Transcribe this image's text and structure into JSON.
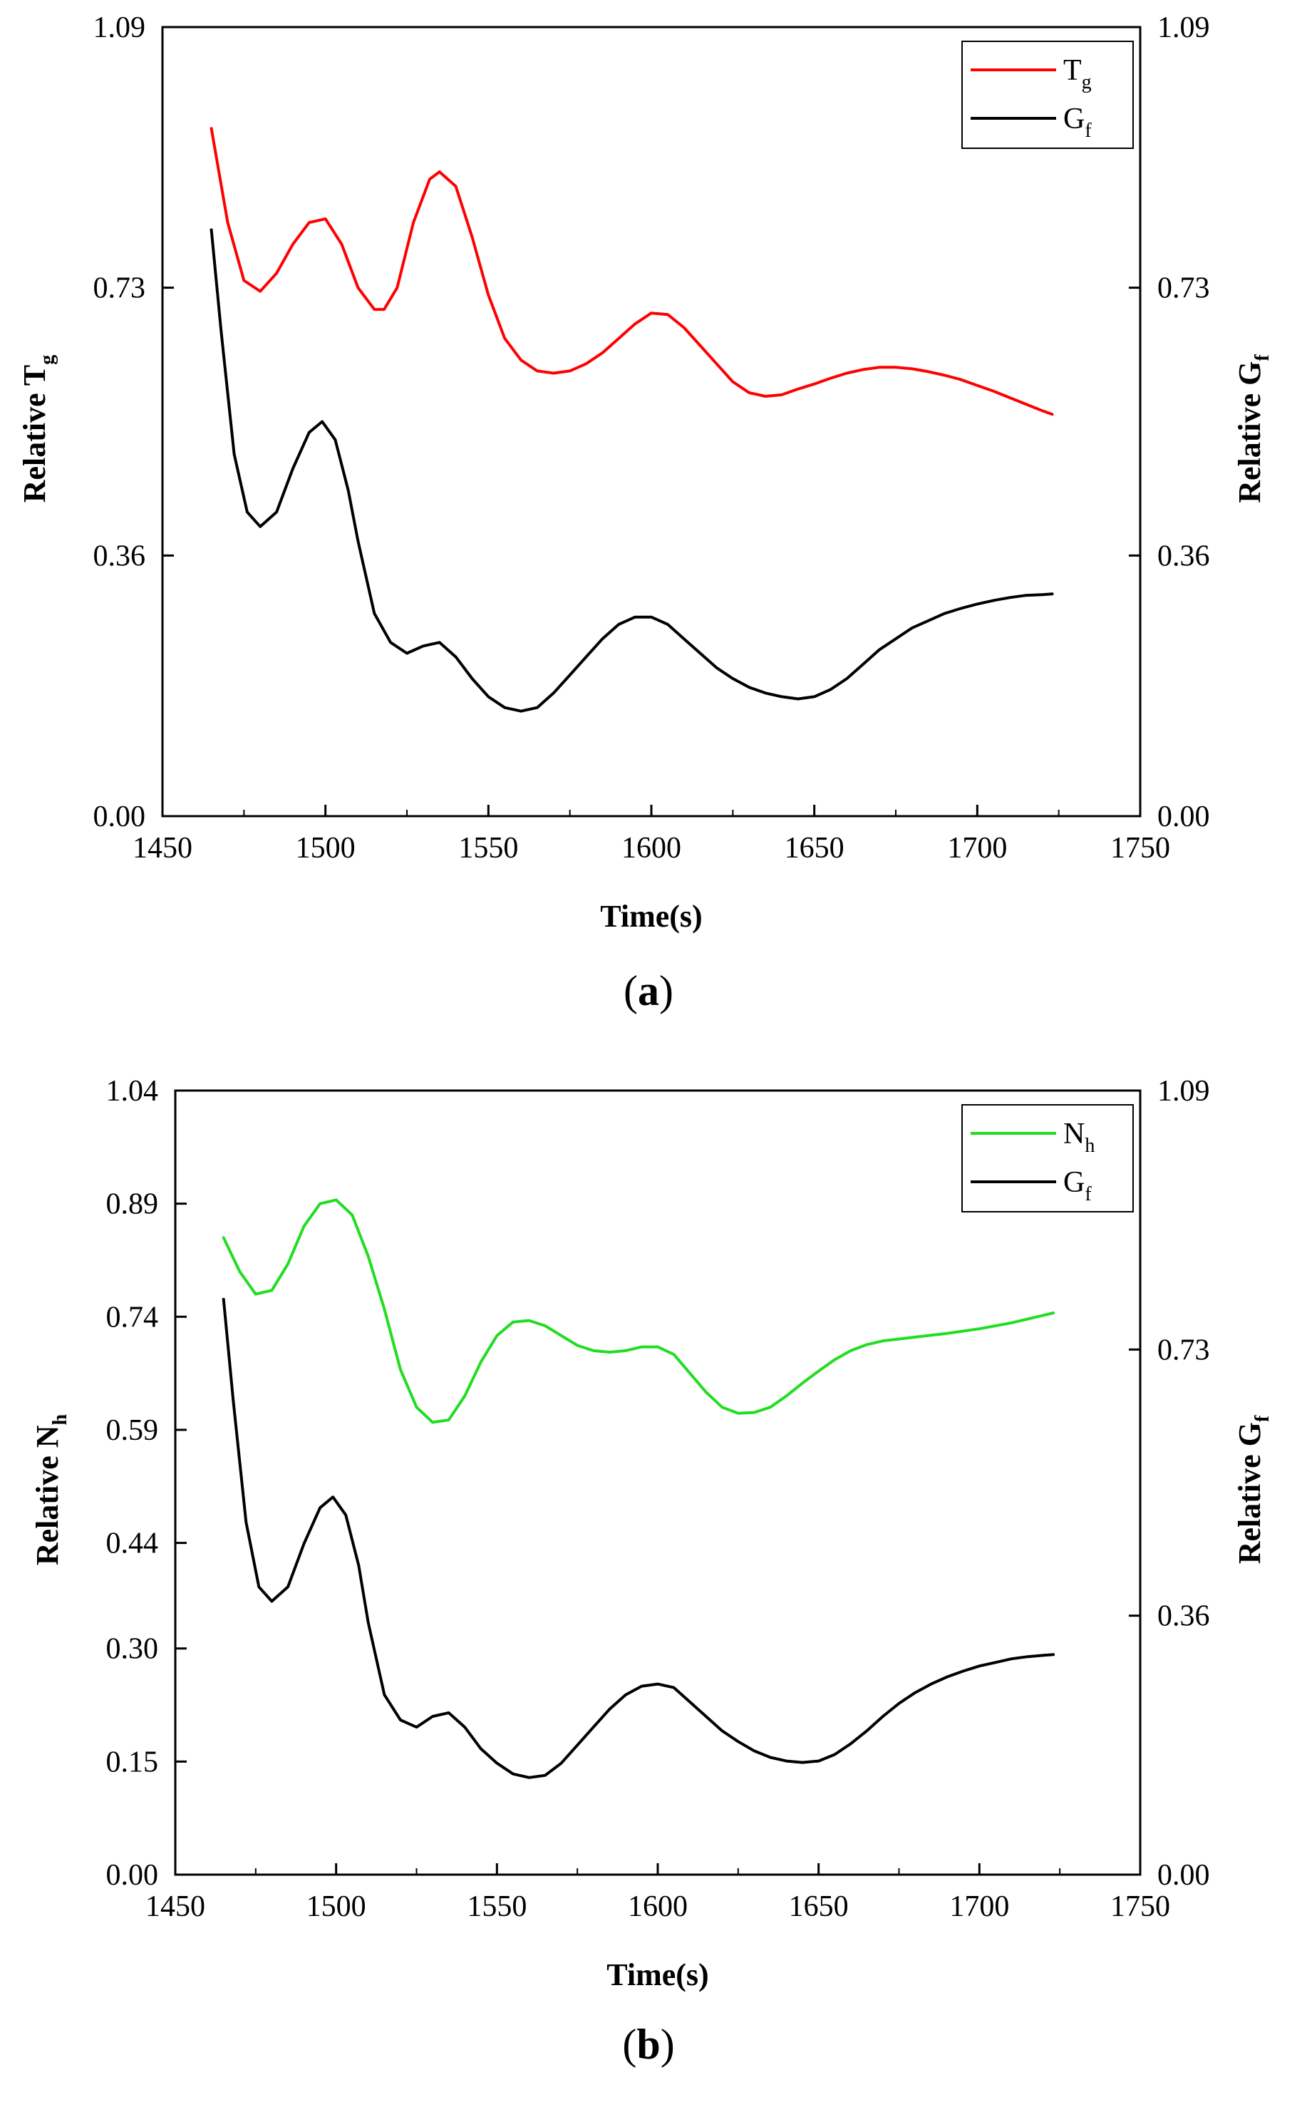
{
  "chart_data": [
    {
      "id": "a",
      "type": "line",
      "panel_label": "a",
      "xlabel": "Time(s)",
      "ylabel_left": {
        "text": "Relative T",
        "sub": "g"
      },
      "ylabel_right": {
        "text": "Relative G",
        "sub": "f"
      },
      "xlim": [
        1450,
        1750
      ],
      "ylim_left": [
        0,
        1.09
      ],
      "ylim_right": [
        0,
        1.09
      ],
      "x_ticks": [
        1450,
        1500,
        1550,
        1600,
        1650,
        1700,
        1750
      ],
      "y_ticks_left": [
        "0.00",
        "0.36",
        "0.73",
        "1.09"
      ],
      "y_ticks_right": [
        "0.00",
        "0.36",
        "0.73",
        "1.09"
      ],
      "legend_position": "top-right",
      "series": [
        {
          "name": "T",
          "sub": "g",
          "color": "#ff0000",
          "axis": "left",
          "x": [
            1465,
            1470,
            1475,
            1480,
            1485,
            1490,
            1495,
            1500,
            1505,
            1510,
            1515,
            1518,
            1522,
            1527,
            1532,
            1535,
            1540,
            1545,
            1550,
            1555,
            1560,
            1565,
            1570,
            1575,
            1580,
            1585,
            1590,
            1595,
            1600,
            1605,
            1610,
            1615,
            1620,
            1625,
            1630,
            1635,
            1640,
            1645,
            1650,
            1655,
            1660,
            1665,
            1670,
            1675,
            1680,
            1685,
            1690,
            1695,
            1700,
            1705,
            1710,
            1715,
            1720,
            1723
          ],
          "y": [
            0.95,
            0.82,
            0.74,
            0.725,
            0.75,
            0.79,
            0.82,
            0.825,
            0.79,
            0.73,
            0.7,
            0.7,
            0.73,
            0.82,
            0.88,
            0.89,
            0.87,
            0.8,
            0.72,
            0.66,
            0.63,
            0.615,
            0.612,
            0.615,
            0.625,
            0.64,
            0.66,
            0.68,
            0.695,
            0.693,
            0.675,
            0.65,
            0.625,
            0.6,
            0.585,
            0.58,
            0.582,
            0.59,
            0.597,
            0.605,
            0.612,
            0.617,
            0.62,
            0.62,
            0.618,
            0.614,
            0.609,
            0.603,
            0.595,
            0.587,
            0.578,
            0.569,
            0.56,
            0.555
          ]
        },
        {
          "name": "G",
          "sub": "f",
          "color": "#000000",
          "axis": "right",
          "x": [
            1465,
            1468,
            1472,
            1476,
            1480,
            1485,
            1490,
            1495,
            1499,
            1503,
            1507,
            1510,
            1515,
            1520,
            1525,
            1530,
            1535,
            1540,
            1545,
            1550,
            1555,
            1560,
            1565,
            1570,
            1575,
            1580,
            1585,
            1590,
            1595,
            1600,
            1605,
            1610,
            1615,
            1620,
            1625,
            1630,
            1635,
            1640,
            1645,
            1650,
            1655,
            1660,
            1665,
            1670,
            1675,
            1680,
            1685,
            1690,
            1695,
            1700,
            1705,
            1710,
            1715,
            1720,
            1723
          ],
          "y": [
            0.81,
            0.67,
            0.5,
            0.42,
            0.4,
            0.42,
            0.48,
            0.53,
            0.545,
            0.52,
            0.45,
            0.38,
            0.28,
            0.24,
            0.225,
            0.235,
            0.24,
            0.22,
            0.19,
            0.165,
            0.15,
            0.145,
            0.15,
            0.17,
            0.195,
            0.22,
            0.245,
            0.265,
            0.275,
            0.275,
            0.265,
            0.245,
            0.225,
            0.205,
            0.19,
            0.178,
            0.17,
            0.165,
            0.162,
            0.165,
            0.175,
            0.19,
            0.21,
            0.23,
            0.245,
            0.26,
            0.27,
            0.28,
            0.287,
            0.293,
            0.298,
            0.302,
            0.305,
            0.306,
            0.307
          ]
        }
      ]
    },
    {
      "id": "b",
      "type": "line",
      "panel_label": "b",
      "xlabel": "Time(s)",
      "ylabel_left": {
        "text": "Relative N",
        "sub": "h"
      },
      "ylabel_right": {
        "text": "Relative G",
        "sub": "f"
      },
      "xlim": [
        1450,
        1750
      ],
      "ylim_left": [
        0,
        1.04
      ],
      "ylim_right": [
        0,
        1.09
      ],
      "x_ticks": [
        1450,
        1500,
        1550,
        1600,
        1650,
        1700,
        1750
      ],
      "y_ticks_left": [
        "0.00",
        "0.15",
        "0.30",
        "0.44",
        "0.59",
        "0.74",
        "0.89",
        "1.04"
      ],
      "y_ticks_right": [
        "0.00",
        "0.36",
        "0.73",
        "1.09"
      ],
      "legend_position": "top-right",
      "series": [
        {
          "name": "N",
          "sub": "h",
          "color": "#22dd22",
          "axis": "left",
          "x": [
            1465,
            1470,
            1475,
            1480,
            1485,
            1490,
            1495,
            1500,
            1505,
            1510,
            1515,
            1520,
            1525,
            1530,
            1535,
            1540,
            1545,
            1550,
            1555,
            1560,
            1565,
            1570,
            1575,
            1580,
            1585,
            1590,
            1595,
            1600,
            1605,
            1610,
            1615,
            1620,
            1625,
            1630,
            1635,
            1640,
            1645,
            1650,
            1655,
            1660,
            1665,
            1670,
            1680,
            1690,
            1700,
            1710,
            1720,
            1723
          ],
          "y": [
            0.845,
            0.8,
            0.77,
            0.775,
            0.81,
            0.86,
            0.89,
            0.895,
            0.875,
            0.82,
            0.75,
            0.67,
            0.62,
            0.6,
            0.603,
            0.635,
            0.68,
            0.715,
            0.733,
            0.735,
            0.728,
            0.715,
            0.702,
            0.695,
            0.693,
            0.695,
            0.7,
            0.7,
            0.69,
            0.665,
            0.64,
            0.62,
            0.612,
            0.613,
            0.62,
            0.635,
            0.652,
            0.668,
            0.683,
            0.695,
            0.703,
            0.708,
            0.713,
            0.718,
            0.724,
            0.732,
            0.742,
            0.745
          ]
        },
        {
          "name": "G",
          "sub": "f",
          "color": "#000000",
          "axis": "right",
          "x": [
            1465,
            1468,
            1472,
            1476,
            1480,
            1485,
            1490,
            1495,
            1499,
            1503,
            1507,
            1510,
            1515,
            1520,
            1525,
            1530,
            1535,
            1540,
            1545,
            1550,
            1555,
            1560,
            1565,
            1570,
            1575,
            1580,
            1585,
            1590,
            1595,
            1600,
            1605,
            1610,
            1615,
            1620,
            1625,
            1630,
            1635,
            1640,
            1645,
            1650,
            1655,
            1660,
            1665,
            1670,
            1675,
            1680,
            1685,
            1690,
            1695,
            1700,
            1705,
            1710,
            1715,
            1720,
            1723
          ],
          "y": [
            0.8,
            0.66,
            0.49,
            0.4,
            0.38,
            0.4,
            0.46,
            0.51,
            0.525,
            0.5,
            0.43,
            0.35,
            0.25,
            0.215,
            0.205,
            0.22,
            0.225,
            0.205,
            0.175,
            0.155,
            0.14,
            0.135,
            0.138,
            0.155,
            0.18,
            0.205,
            0.23,
            0.25,
            0.262,
            0.265,
            0.26,
            0.24,
            0.22,
            0.2,
            0.185,
            0.172,
            0.163,
            0.158,
            0.156,
            0.158,
            0.167,
            0.182,
            0.2,
            0.22,
            0.238,
            0.253,
            0.265,
            0.275,
            0.283,
            0.29,
            0.295,
            0.3,
            0.303,
            0.305,
            0.306
          ]
        }
      ]
    }
  ]
}
